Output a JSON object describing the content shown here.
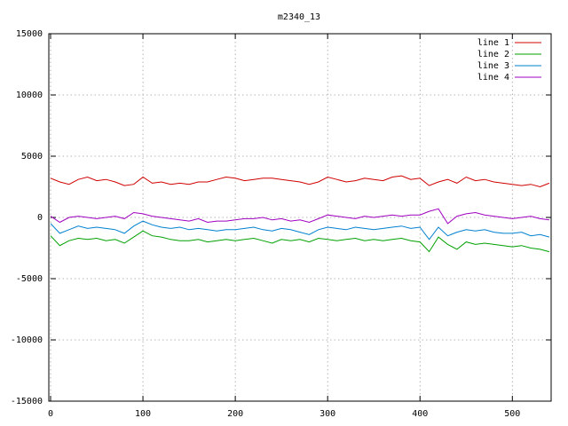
{
  "chart_data": {
    "type": "line",
    "title": "m2340_13",
    "x": [
      0,
      10,
      20,
      30,
      40,
      50,
      60,
      70,
      80,
      90,
      100,
      110,
      120,
      130,
      140,
      150,
      160,
      170,
      180,
      190,
      200,
      210,
      220,
      230,
      240,
      250,
      260,
      270,
      280,
      290,
      300,
      310,
      320,
      330,
      340,
      350,
      360,
      370,
      380,
      390,
      400,
      410,
      420,
      430,
      440,
      450,
      460,
      470,
      480,
      490,
      500,
      510,
      520,
      530,
      540
    ],
    "series": [
      {
        "name": "line 1",
        "color": "#d00000",
        "values": [
          3200,
          2900,
          2700,
          3100,
          3300,
          3000,
          3100,
          2900,
          2600,
          2700,
          3300,
          2800,
          2900,
          2700,
          2800,
          2700,
          2900,
          2900,
          3100,
          3300,
          3200,
          3000,
          3100,
          3200,
          3200,
          3100,
          3000,
          2900,
          2700,
          2900,
          3300,
          3100,
          2900,
          3000,
          3200,
          3100,
          3000,
          3300,
          3400,
          3100,
          3200,
          2600,
          2900,
          3100,
          2800,
          3300,
          3000,
          3100,
          2900,
          2800,
          2700,
          2600,
          2700,
          2500,
          2800
        ]
      },
      {
        "name": "line 2",
        "color": "#00a000",
        "values": [
          -1500,
          -2300,
          -1900,
          -1700,
          -1800,
          -1700,
          -1900,
          -1800,
          -2100,
          -1600,
          -1100,
          -1500,
          -1600,
          -1800,
          -1900,
          -1900,
          -1800,
          -2000,
          -1900,
          -1800,
          -1900,
          -1800,
          -1700,
          -1900,
          -2100,
          -1800,
          -1900,
          -1800,
          -2000,
          -1700,
          -1800,
          -1900,
          -1800,
          -1700,
          -1900,
          -1800,
          -1900,
          -1800,
          -1700,
          -1900,
          -2000,
          -2800,
          -1600,
          -2200,
          -2600,
          -2000,
          -2200,
          -2100,
          -2200,
          -2300,
          -2400,
          -2300,
          -2500,
          -2600,
          -2800
        ]
      },
      {
        "name": "line 3",
        "color": "#0080d0",
        "values": [
          -500,
          -1300,
          -1000,
          -700,
          -900,
          -800,
          -900,
          -1000,
          -1300,
          -700,
          -300,
          -600,
          -800,
          -900,
          -800,
          -1000,
          -900,
          -1000,
          -1100,
          -1000,
          -1000,
          -900,
          -800,
          -1000,
          -1100,
          -900,
          -1000,
          -1200,
          -1400,
          -1000,
          -800,
          -900,
          -1000,
          -800,
          -900,
          -1000,
          -900,
          -800,
          -700,
          -900,
          -800,
          -1800,
          -800,
          -1500,
          -1200,
          -1000,
          -1100,
          -1000,
          -1200,
          -1300,
          -1300,
          -1200,
          -1500,
          -1400,
          -1600
        ]
      },
      {
        "name": "line 4",
        "color": "#a000c0",
        "values": [
          100,
          -400,
          0,
          100,
          0,
          -100,
          0,
          100,
          -100,
          400,
          300,
          100,
          0,
          -100,
          -200,
          -300,
          -100,
          -400,
          -300,
          -300,
          -200,
          -100,
          -100,
          0,
          -200,
          -100,
          -300,
          -200,
          -400,
          -100,
          200,
          100,
          0,
          -100,
          100,
          0,
          100,
          200,
          100,
          200,
          200,
          500,
          700,
          -500,
          100,
          300,
          400,
          200,
          100,
          0,
          -100,
          0,
          100,
          -100,
          -200
        ]
      }
    ],
    "xlim": [
      0,
      542
    ],
    "xticks": [
      0,
      100,
      200,
      300,
      400,
      500
    ],
    "ylim": [
      -15000,
      15000
    ],
    "yticks": [
      -15000,
      -10000,
      -5000,
      0,
      5000,
      10000,
      15000
    ],
    "grid": true,
    "legend": "top-right"
  }
}
